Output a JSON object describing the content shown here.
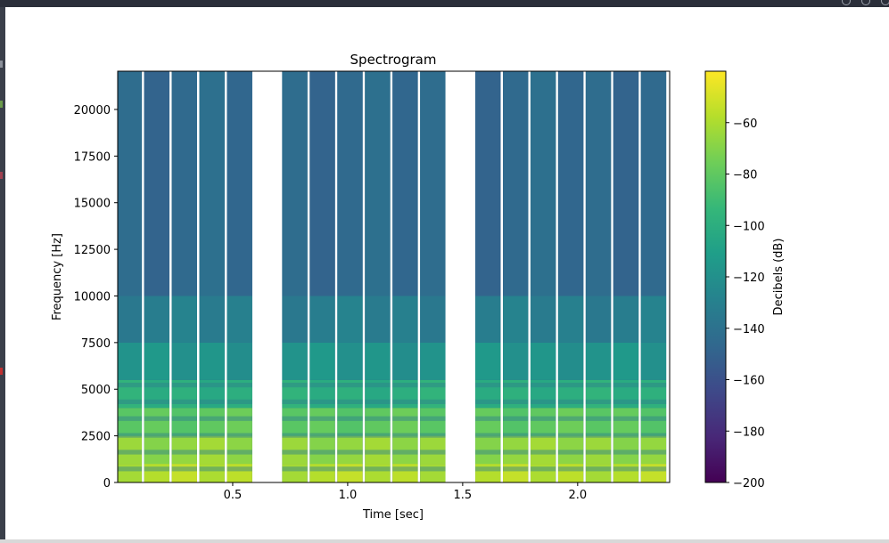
{
  "chart_data": {
    "type": "heatmap",
    "title": "Spectrogram",
    "xlabel": "Time [sec]",
    "ylabel": "Frequency [Hz]",
    "xlim": [
      0.0,
      2.4
    ],
    "ylim": [
      0,
      22050
    ],
    "x_ticks": [
      0.5,
      1.0,
      1.5,
      2.0
    ],
    "x_tick_labels": [
      "0.5",
      "1.0",
      "1.5",
      "2.0"
    ],
    "y_ticks": [
      0,
      2500,
      5000,
      7500,
      10000,
      12500,
      15000,
      17500,
      20000
    ],
    "y_tick_labels": [
      "0",
      "2500",
      "5000",
      "7500",
      "10000",
      "12500",
      "15000",
      "17500",
      "20000"
    ],
    "colorbar": {
      "label": "Decibels (dB)",
      "range": [
        -200,
        -40
      ],
      "colormap": "viridis",
      "ticks": [
        -60,
        -80,
        -100,
        -120,
        -140,
        -160,
        -180,
        -200
      ],
      "tick_labels": [
        "−60",
        "−80",
        "−100",
        "−120",
        "−140",
        "−160",
        "−180",
        "−200"
      ]
    },
    "segments": [
      {
        "start": 0.0,
        "end": 0.105
      },
      {
        "start": 0.115,
        "end": 0.225
      },
      {
        "start": 0.235,
        "end": 0.345
      },
      {
        "start": 0.355,
        "end": 0.465
      },
      {
        "start": 0.475,
        "end": 0.585
      },
      {
        "start": 0.715,
        "end": 0.825
      },
      {
        "start": 0.835,
        "end": 0.945
      },
      {
        "start": 0.955,
        "end": 1.065
      },
      {
        "start": 1.075,
        "end": 1.185
      },
      {
        "start": 1.195,
        "end": 1.305
      },
      {
        "start": 1.315,
        "end": 1.425
      },
      {
        "start": 1.555,
        "end": 1.665
      },
      {
        "start": 1.675,
        "end": 1.785
      },
      {
        "start": 1.795,
        "end": 1.905
      },
      {
        "start": 1.915,
        "end": 2.025
      },
      {
        "start": 2.035,
        "end": 2.145
      },
      {
        "start": 2.155,
        "end": 2.265
      },
      {
        "start": 2.275,
        "end": 2.385
      }
    ],
    "levels_db": [
      {
        "max_hz": 1000,
        "db": -58
      },
      {
        "max_hz": 2500,
        "db": -66
      },
      {
        "max_hz": 4000,
        "db": -80
      },
      {
        "max_hz": 5500,
        "db": -100
      },
      {
        "max_hz": 7500,
        "db": -118
      },
      {
        "max_hz": 10000,
        "db": -132
      },
      {
        "max_hz": 22050,
        "db": -145
      }
    ]
  },
  "colors": {
    "viridis": [
      "#440154",
      "#482878",
      "#3e4989",
      "#31688e",
      "#26828e",
      "#1f9e89",
      "#35b779",
      "#6ece58",
      "#b5de2b",
      "#fde725"
    ]
  }
}
